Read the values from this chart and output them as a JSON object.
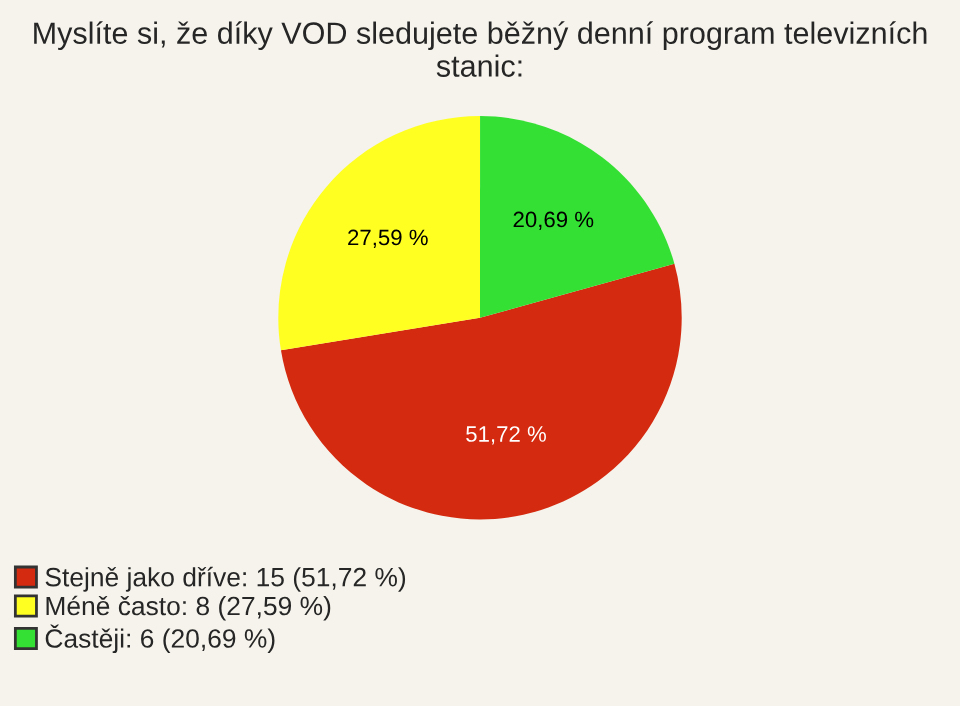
{
  "chart_data": {
    "type": "pie",
    "title": "Myslíte si, že díky VOD sledujete běžný denní program televizních stanic:",
    "categories": [
      "Stejně jako dříve: 15 (51,72 %)",
      "Méně často: 8 (27,59 %)",
      "Častěji: 6 (20,69 %)"
    ],
    "values": [
      51.72,
      27.59,
      20.69
    ],
    "value_labels": [
      "51,72 %",
      "27,59 %",
      "20,69 %"
    ],
    "colors": [
      "#d42a10",
      "#ffff22",
      "#33e033"
    ],
    "legend": "bottom left"
  }
}
